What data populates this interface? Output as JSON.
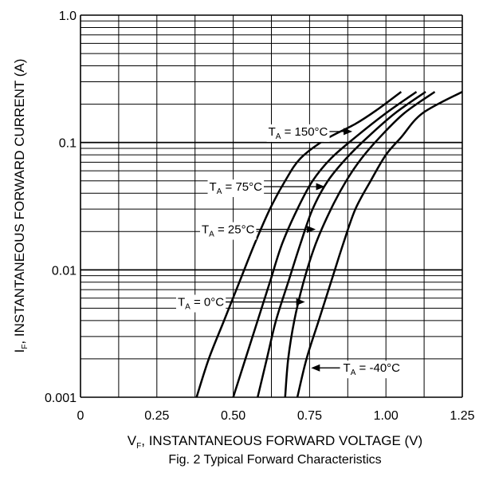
{
  "chart_data": {
    "type": "line",
    "title": "Fig. 2 Typical Forward Characteristics",
    "xlabel": {
      "main": "V",
      "sub": "F",
      "rest": ", INSTANTANEOUS FORWARD VOLTAGE (V)"
    },
    "ylabel": {
      "main": "I",
      "sub": "F",
      "rest": ", INSTANTANEOUS FORWARD CURRENT (A)"
    },
    "xlim": [
      0,
      1.25
    ],
    "ylim": [
      0.001,
      1.0
    ],
    "yscale": "log",
    "grid": true,
    "x_ticks": [
      {
        "value": 0,
        "label": "0"
      },
      {
        "value": 0.25,
        "label": "0.25"
      },
      {
        "value": 0.5,
        "label": "0.50"
      },
      {
        "value": 0.75,
        "label": "0.75"
      },
      {
        "value": 1.0,
        "label": "1.00"
      },
      {
        "value": 1.25,
        "label": "1.25"
      }
    ],
    "y_ticks": [
      {
        "value": 0.001,
        "label": "0.001"
      },
      {
        "value": 0.01,
        "label": "0.01"
      },
      {
        "value": 0.1,
        "label": "0.1"
      },
      {
        "value": 1.0,
        "label": "1.0"
      }
    ],
    "series": [
      {
        "name": "T_A = 150°C",
        "label_main": "T",
        "label_sub": "A",
        "label_rest": " = 150°C",
        "points": [
          [
            0.38,
            0.001
          ],
          [
            0.42,
            0.002
          ],
          [
            0.47,
            0.004
          ],
          [
            0.52,
            0.008
          ],
          [
            0.57,
            0.016
          ],
          [
            0.62,
            0.03
          ],
          [
            0.67,
            0.05
          ],
          [
            0.72,
            0.075
          ],
          [
            0.8,
            0.105
          ],
          [
            0.9,
            0.14
          ],
          [
            0.97,
            0.18
          ],
          [
            1.05,
            0.25
          ]
        ]
      },
      {
        "name": "T_A = 75°C",
        "label_main": "T",
        "label_sub": "A",
        "label_rest": " = 75°C",
        "points": [
          [
            0.5,
            0.001
          ],
          [
            0.54,
            0.002
          ],
          [
            0.58,
            0.004
          ],
          [
            0.62,
            0.008
          ],
          [
            0.66,
            0.016
          ],
          [
            0.71,
            0.03
          ],
          [
            0.76,
            0.05
          ],
          [
            0.82,
            0.075
          ],
          [
            0.9,
            0.11
          ],
          [
            1.0,
            0.17
          ],
          [
            1.1,
            0.25
          ]
        ]
      },
      {
        "name": "T_A = 25°C",
        "label_main": "T",
        "label_sub": "A",
        "label_rest": " = 25°C",
        "points": [
          [
            0.58,
            0.001
          ],
          [
            0.61,
            0.002
          ],
          [
            0.64,
            0.004
          ],
          [
            0.68,
            0.008
          ],
          [
            0.72,
            0.016
          ],
          [
            0.76,
            0.03
          ],
          [
            0.81,
            0.05
          ],
          [
            0.87,
            0.075
          ],
          [
            0.94,
            0.11
          ],
          [
            1.03,
            0.17
          ],
          [
            1.13,
            0.25
          ]
        ]
      },
      {
        "name": "T_A = 0°C",
        "label_main": "T",
        "label_sub": "A",
        "label_rest": " = 0°C",
        "points": [
          [
            0.67,
            0.001
          ],
          [
            0.68,
            0.002
          ],
          [
            0.7,
            0.004
          ],
          [
            0.73,
            0.008
          ],
          [
            0.77,
            0.016
          ],
          [
            0.82,
            0.03
          ],
          [
            0.87,
            0.05
          ],
          [
            0.92,
            0.075
          ],
          [
            0.98,
            0.11
          ],
          [
            1.06,
            0.17
          ],
          [
            1.16,
            0.25
          ]
        ]
      },
      {
        "name": "T_A = -40°C",
        "label_main": "T",
        "label_sub": "A",
        "label_rest": " = -40°C",
        "points": [
          [
            0.71,
            0.001
          ],
          [
            0.74,
            0.002
          ],
          [
            0.78,
            0.004
          ],
          [
            0.82,
            0.008
          ],
          [
            0.86,
            0.016
          ],
          [
            0.9,
            0.03
          ],
          [
            0.95,
            0.05
          ],
          [
            1.0,
            0.08
          ],
          [
            1.05,
            0.11
          ],
          [
            1.12,
            0.17
          ],
          [
            1.25,
            0.25
          ]
        ]
      }
    ],
    "annotations": [
      {
        "series": 0,
        "text_main": "T",
        "text_sub": "A",
        "text_rest": " = 150°C",
        "label_x": 0.81,
        "label_y": 0.122,
        "arrow_to_x": 0.89,
        "arrow_to_y": 0.122,
        "anchor": "end"
      },
      {
        "series": 1,
        "text_main": "T",
        "text_sub": "A",
        "text_rest": " = 75°C",
        "label_x": 0.595,
        "label_y": 0.045,
        "arrow_to_x": 0.8,
        "arrow_to_y": 0.045,
        "anchor": "end"
      },
      {
        "series": 2,
        "text_main": "T",
        "text_sub": "A",
        "text_rest": " = 25°C",
        "label_x": 0.57,
        "label_y": 0.0208,
        "arrow_to_x": 0.77,
        "arrow_to_y": 0.0208,
        "anchor": "end"
      },
      {
        "series": 3,
        "text_main": "T",
        "text_sub": "A",
        "text_rest": " = 0°C",
        "label_x": 0.47,
        "label_y": 0.0056,
        "arrow_to_x": 0.735,
        "arrow_to_y": 0.0056,
        "anchor": "end"
      },
      {
        "series": 4,
        "text_main": "T",
        "text_sub": "A",
        "text_rest": " = -40°C",
        "label_x": 0.86,
        "label_y": 0.0017,
        "arrow_to_x": 0.755,
        "arrow_to_y": 0.0017,
        "anchor": "start"
      }
    ]
  }
}
